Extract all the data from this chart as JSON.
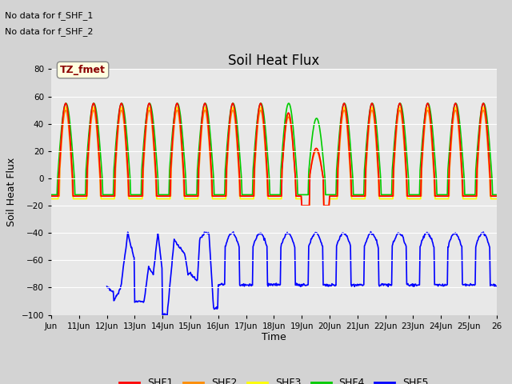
{
  "title": "Soil Heat Flux",
  "ylabel": "Soil Heat Flux",
  "xlabel": "Time",
  "xtick_labels": [
    "Jun",
    "11Jun",
    "12Jun",
    "13Jun",
    "14Jun",
    "15Jun",
    "16Jun",
    "17Jun",
    "18Jun",
    "19Jun",
    "20Jun",
    "21Jun",
    "22Jun",
    "23Jun",
    "24Jun",
    "25Jun",
    "26"
  ],
  "ylim": [
    -100,
    80
  ],
  "yticks": [
    -100,
    -80,
    -60,
    -40,
    -20,
    0,
    20,
    40,
    60,
    80
  ],
  "no_data_text1": "No data for f_SHF_1",
  "no_data_text2": "No data for f_SHF_2",
  "tz_label": "TZ_fmet",
  "legend_entries": [
    "SHF1",
    "SHF2",
    "SHF3",
    "SHF4",
    "SHF5"
  ],
  "legend_colors": [
    "#ff0000",
    "#ff8c00",
    "#ffff00",
    "#00cc00",
    "#0000ff"
  ],
  "background_color": "#d3d3d3",
  "plot_bg_color": "#e8e8e8",
  "title_fontsize": 12,
  "n_days": 16,
  "pts_per_day": 48
}
